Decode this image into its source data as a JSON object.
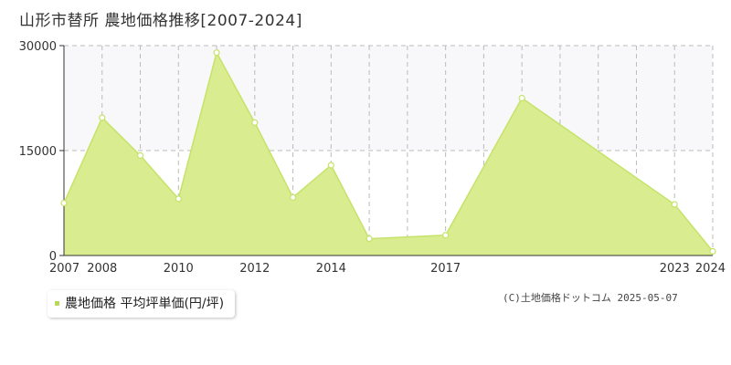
{
  "header": {
    "title": "山形市替所 農地価格推移[2007-2024]"
  },
  "legend": {
    "label": "農地価格 平均坪単価(円/坪)"
  },
  "footer": {
    "copyright": "(C)土地価格ドットコム 2025-05-07"
  },
  "colors": {
    "area_fill": "#d9ec8f",
    "line": "#c5e36a",
    "marker_stroke": "#c5e36a",
    "marker_fill": "#ffffff",
    "upper_band": "#f8f8fa",
    "grid": "#bbbbbb",
    "legend_marker": "#b7d957"
  },
  "chart_data": {
    "type": "area",
    "x": [
      2007,
      2008,
      2009,
      2010,
      2011,
      2012,
      2013,
      2014,
      2015,
      2016,
      2017,
      2018,
      2019,
      2020,
      2021,
      2022,
      2023,
      2024
    ],
    "series": [
      {
        "name": "農地価格 平均坪単価(円/坪)",
        "points": [
          {
            "x": 2007,
            "y": 7500
          },
          {
            "x": 2008,
            "y": 19700
          },
          {
            "x": 2009,
            "y": 14300
          },
          {
            "x": 2010,
            "y": 8100
          },
          {
            "x": 2011,
            "y": 29000
          },
          {
            "x": 2012,
            "y": 19000
          },
          {
            "x": 2013,
            "y": 8300
          },
          {
            "x": 2014,
            "y": 12900
          },
          {
            "x": 2015,
            "y": 2400
          },
          {
            "x": 2017,
            "y": 2900
          },
          {
            "x": 2019,
            "y": 22500
          },
          {
            "x": 2023,
            "y": 7300
          },
          {
            "x": 2024,
            "y": 600
          }
        ]
      }
    ],
    "x_tick_labels": [
      "2007",
      "2008",
      "2010",
      "2012",
      "2014",
      "2017",
      "2023",
      "2024"
    ],
    "y_ticks": [
      0,
      15000,
      30000
    ],
    "y_tick_labels": [
      "0",
      "15000",
      "30000"
    ],
    "xlim": [
      2007,
      2024
    ],
    "ylim": [
      0,
      30000
    ],
    "grid": true,
    "legend_position": "bottom-left"
  }
}
